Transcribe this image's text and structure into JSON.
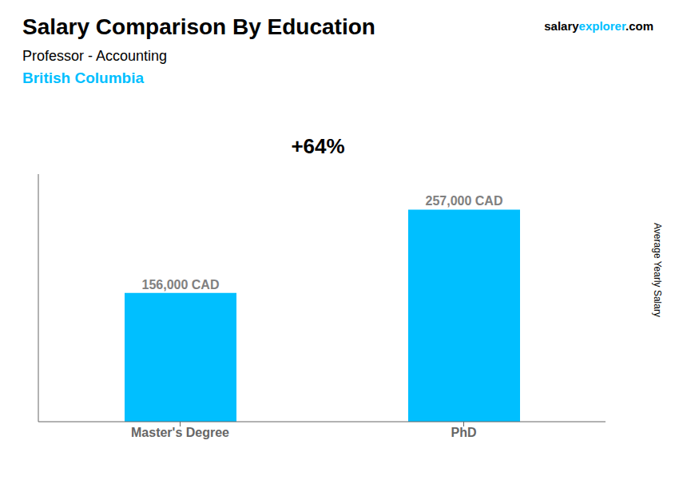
{
  "chart_data": {
    "type": "bar",
    "title": "Salary Comparison By Education",
    "subtitle": [
      "Professor - Accounting",
      "British Columbia"
    ],
    "categories": [
      "Master's Degree",
      "PhD"
    ],
    "values": [
      156000,
      257000
    ],
    "value_labels": [
      "156,000 CAD",
      "257,000 CAD"
    ],
    "data_labels": true,
    "color": "#00BFFF",
    "ylim": [
      0,
      300000
    ],
    "tick_labels": "x",
    "grid": false,
    "annotations": [
      "+64%",
      "salary",
      "explorer",
      ".com",
      "Average Yearly Salary"
    ]
  }
}
